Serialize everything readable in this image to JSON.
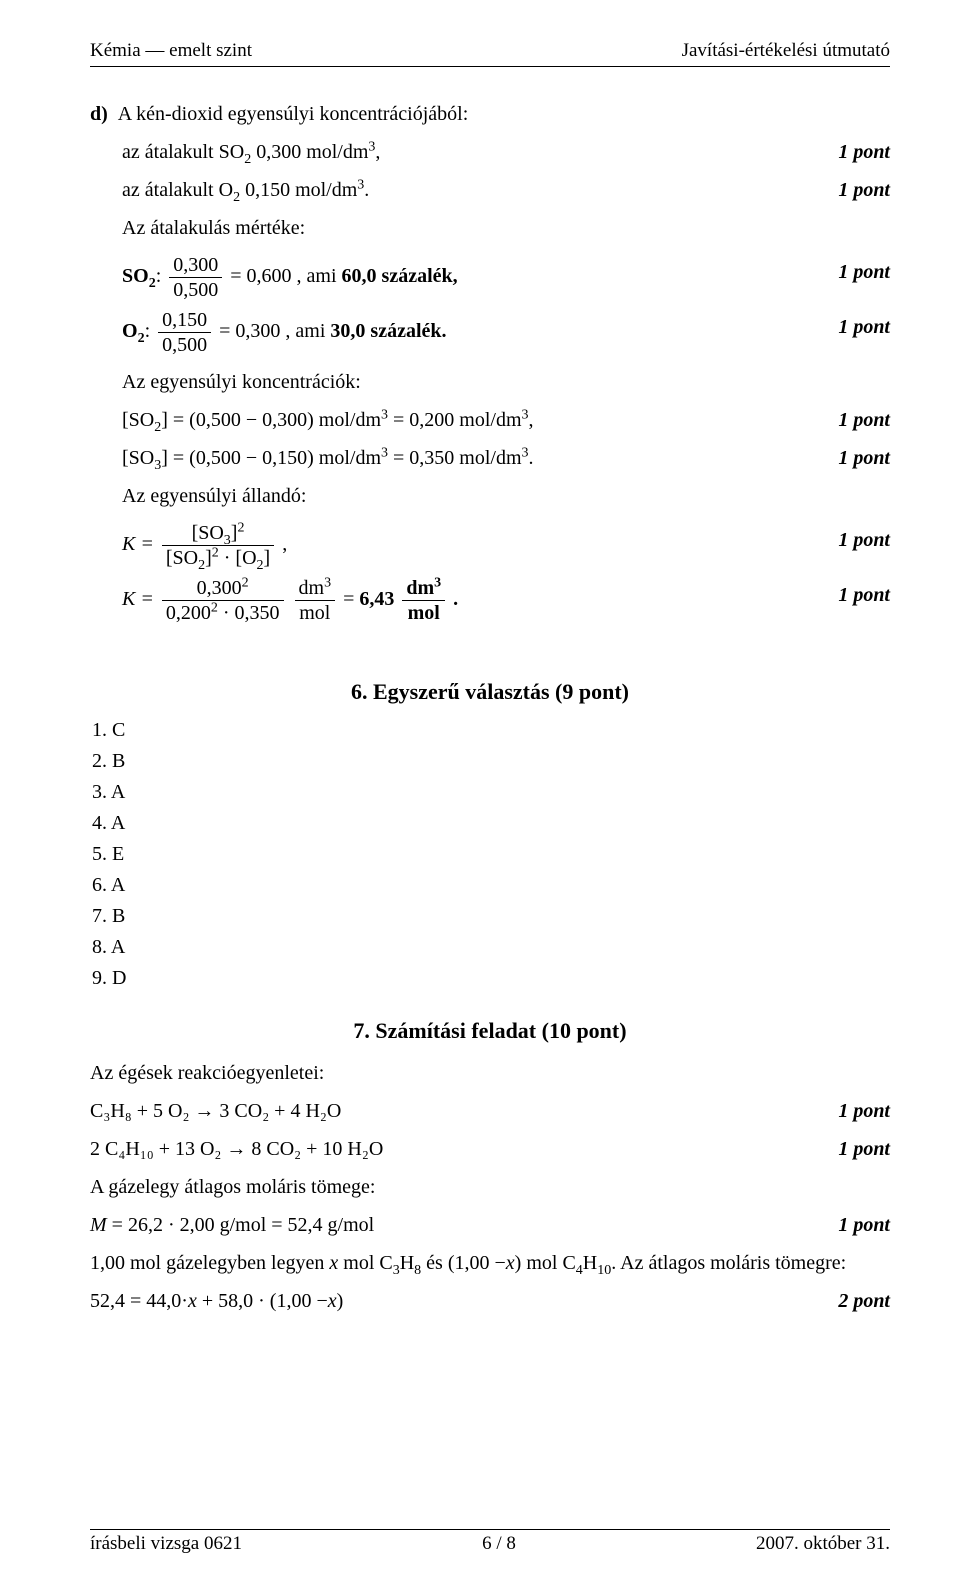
{
  "header": {
    "left": "Kémia — emelt szint",
    "right": "Javítási-értékelési útmutató"
  },
  "sectionD": {
    "label": "d)",
    "title": "A kén-dioxid egyensúlyi koncentrációjából:",
    "line_so2": "az átalakult SO",
    "line_so2_val": " 0,300 mol/dm",
    "line_o2": "az átalakult O",
    "line_o2_val": " 0,150 mol/dm",
    "pt": "1 pont",
    "atm": "Az átalakulás mértéke:",
    "so2_lbl": "SO",
    "colon": ": ",
    "frac_so2_num": "0,300",
    "frac_so2_den": "0,500",
    "so2_eq": " = 0,600 , ami ",
    "so2_pct": "60,0 százalék,",
    "o2_lbl": "O",
    "frac_o2_num": "0,150",
    "frac_o2_den": "0,500",
    "o2_eq": " = 0,300 , ami ",
    "o2_pct": "30,0 százalék.",
    "conc_title": "Az egyensúlyi koncentrációk:",
    "so2_conc": "[SO",
    "so2_conc_rest": "] = (0,500 − 0,300) mol/dm",
    "so2_conc_end": " = 0,200 mol/dm",
    "comma": ",",
    "so3_conc": "[SO",
    "so3_conc_rest": "] = (0,500 − 0,150) mol/dm",
    "so3_conc_end": " = 0,350 mol/dm",
    "period": ".",
    "const_title": "Az egyensúlyi állandó:",
    "K_eq": "K = ",
    "K_res": "K = ",
    "k_num1": "0,300",
    "k_den1a": "0,200",
    "k_den1b": " · 0,350",
    "k_u_num": "dm",
    "k_u_den": "mol",
    "k_eq_val": " = ",
    "k_val": "6,43",
    "k_u2_num": "dm",
    "k_u2_den": "mol"
  },
  "section6": {
    "title": "6. Egyszerű választás (9 pont)",
    "answers": [
      "1.  C",
      "2.  B",
      "3.  A",
      "4.  A",
      "5.  E",
      "6.  A",
      "7.  B",
      "8.  A",
      "9.  D"
    ]
  },
  "section7": {
    "title": "7. Számítási feladat (10 pont)",
    "intro": "Az égések reakcióegyenletei:",
    "eq1": "C₃H₈ + 5 O₂ → 3 CO₂ + 4 H₂O",
    "eq2": "2 C₄H₁₀ + 13 O₂ → 8 CO₂ + 10 H₂O",
    "mass_title": "A gázelegy átlagos moláris tömege:",
    "mass_eq": "M = 26,2 · 2,00 g/mol = 52,4 g/mol",
    "mol_line": "1,00 mol gázelegyben legyen x mol C₃H₈ és (1,00 −x) mol C₄H₁₀. Az átlagos moláris tömegre:",
    "final_eq": "52,4 = 44,0·x + 58,0 · (1,00 −x)",
    "pt1": "1 pont",
    "pt2": "2 pont"
  },
  "footer": {
    "left": "írásbeli vizsga 0621",
    "center": "6 / 8",
    "right": "2007. október 31."
  }
}
